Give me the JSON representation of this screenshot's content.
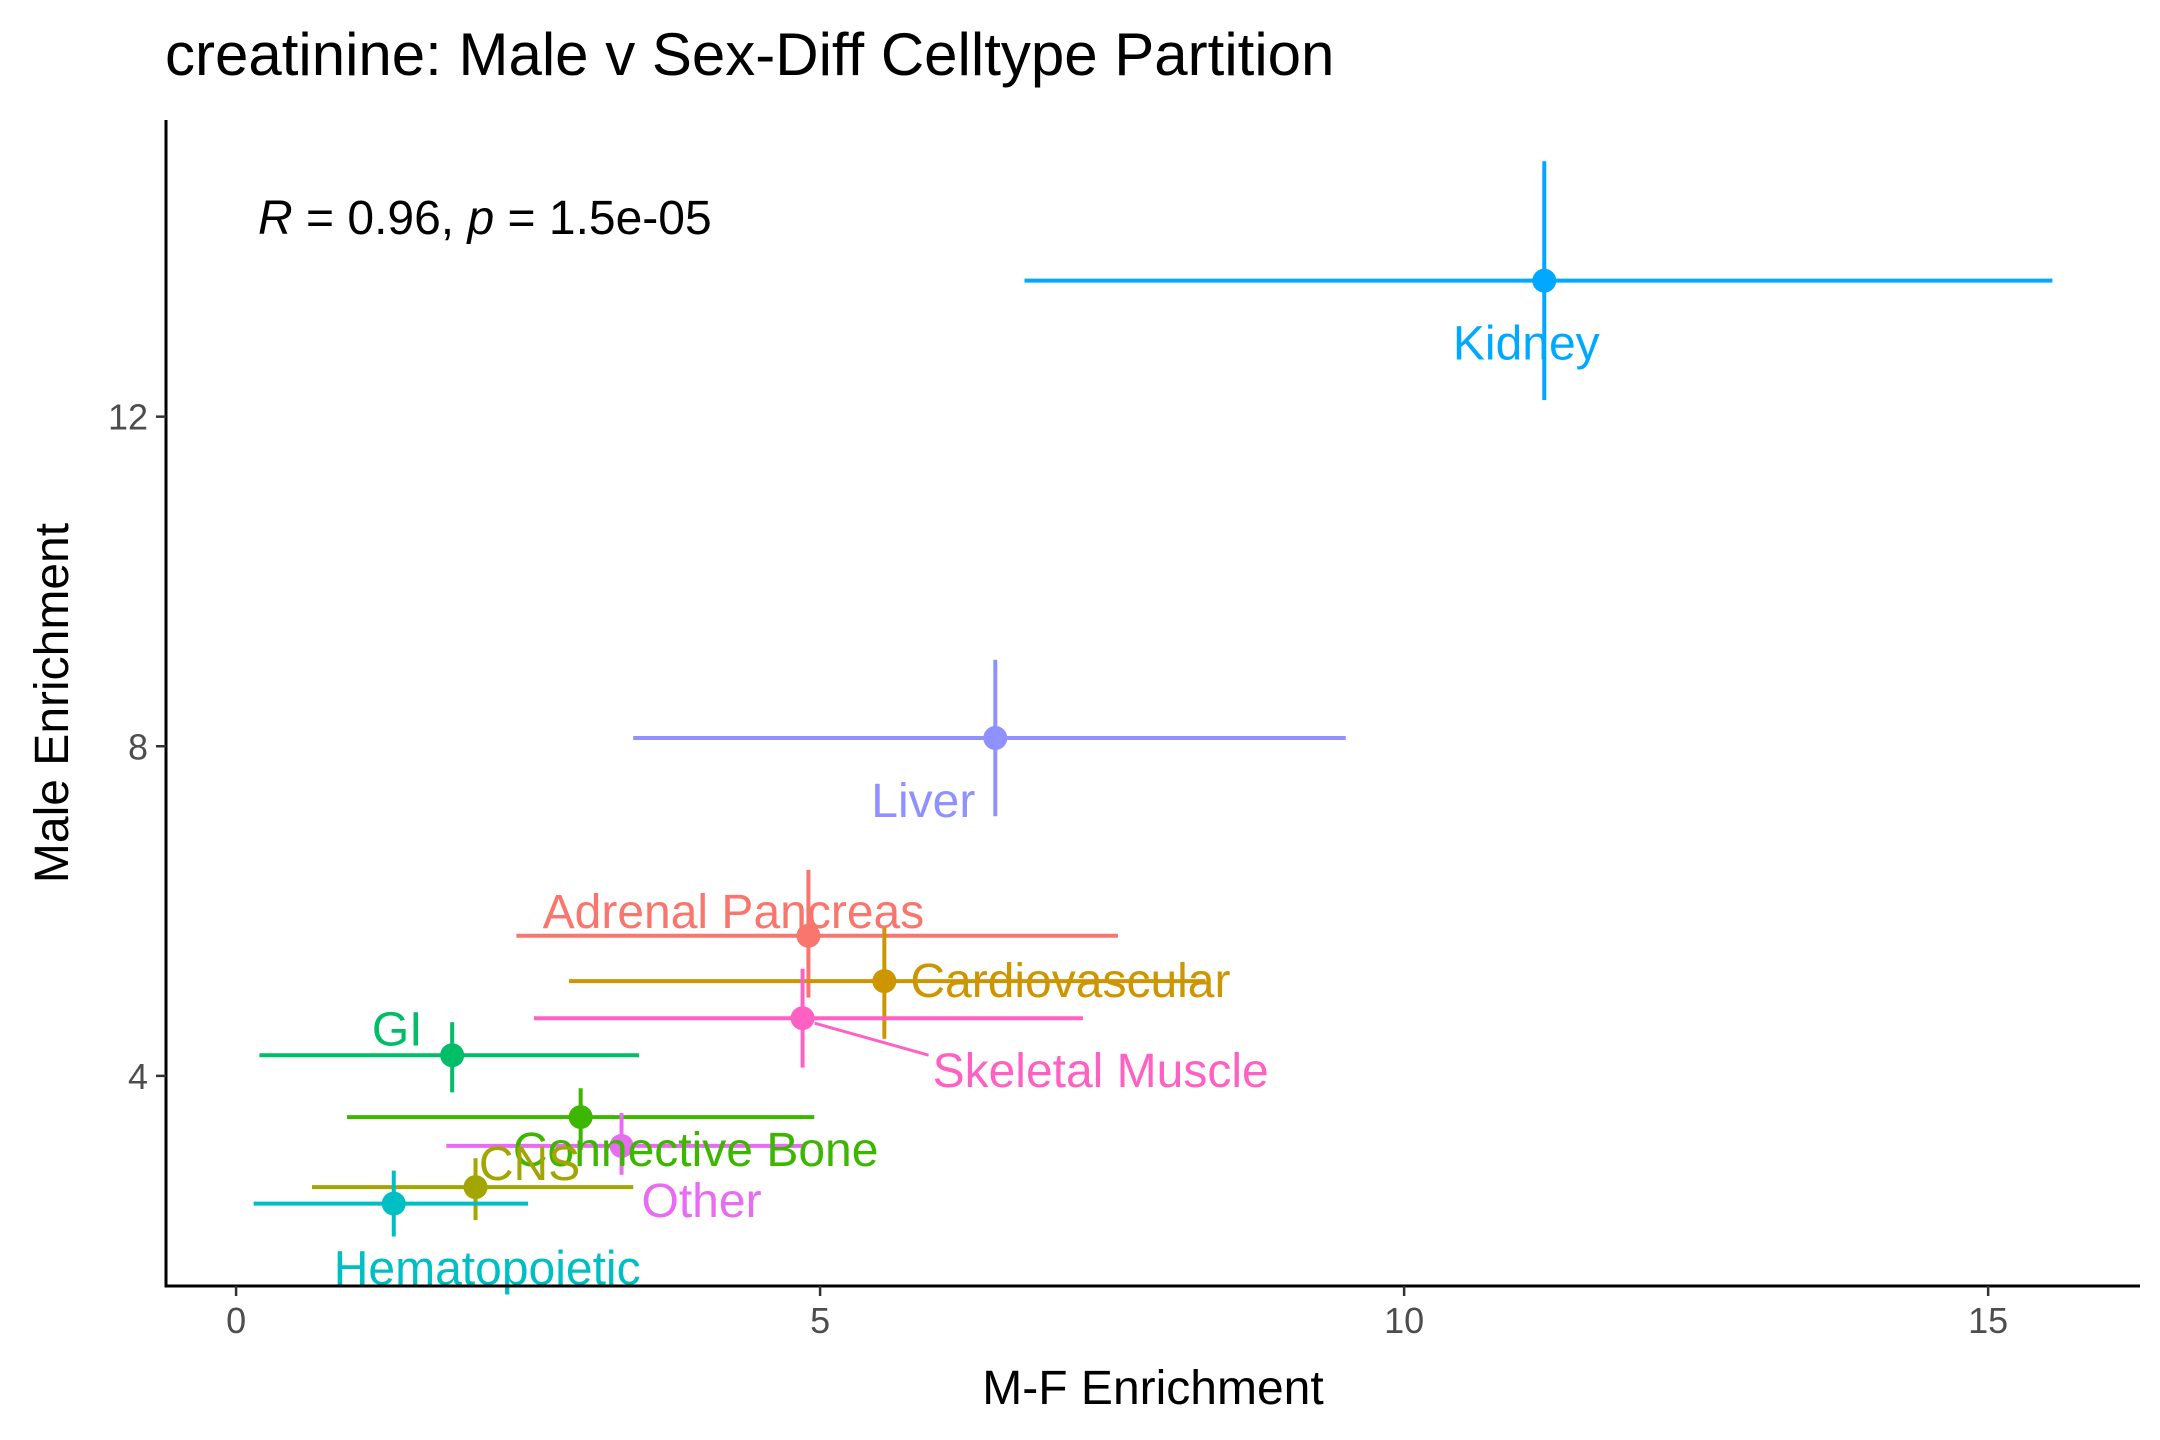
{
  "chart_data": {
    "type": "scatter",
    "title": "creatinine: Male v Sex-Diff Celltype Partition",
    "xlabel": "M-F Enrichment",
    "ylabel": "Male Enrichment",
    "xlim": [
      -0.6,
      16.3
    ],
    "ylim": [
      1.45,
      15.6
    ],
    "x_ticks": [
      0,
      5,
      10,
      15
    ],
    "y_ticks": [
      4,
      8,
      12
    ],
    "grid": false,
    "legend": "none",
    "annotation": {
      "r_symbol": "R",
      "r_text": " = 0.96, ",
      "p_symbol": "p",
      "p_text": " = 1.5e-05"
    },
    "series": [
      {
        "name": "Kidney",
        "color": "#00A9FF",
        "x": 11.2,
        "y": 13.65,
        "xmin": 6.75,
        "xmax": 15.55,
        "ymin": 12.2,
        "ymax": 15.1
      },
      {
        "name": "Liver",
        "color": "#8F91FF",
        "x": 6.5,
        "y": 8.1,
        "xmin": 3.4,
        "xmax": 9.5,
        "ymin": 7.15,
        "ymax": 9.05
      },
      {
        "name": "Adrenal Pancreas",
        "color": "#F8766D",
        "x": 4.9,
        "y": 5.7,
        "xmin": 2.4,
        "xmax": 7.55,
        "ymin": 4.95,
        "ymax": 6.5
      },
      {
        "name": "Cardiovascular",
        "color": "#CD9600",
        "x": 5.55,
        "y": 5.15,
        "xmin": 2.85,
        "xmax": 8.3,
        "ymin": 4.45,
        "ymax": 5.8
      },
      {
        "name": "Skeletal Muscle",
        "color": "#FF61C3",
        "x": 4.85,
        "y": 4.7,
        "xmin": 2.55,
        "xmax": 7.25,
        "ymin": 4.1,
        "ymax": 5.3
      },
      {
        "name": "GI",
        "color": "#00BE67",
        "x": 1.85,
        "y": 4.25,
        "xmin": 0.2,
        "xmax": 3.45,
        "ymin": 3.8,
        "ymax": 4.65
      },
      {
        "name": "Connective Bone",
        "color": "#3DB600",
        "x": 2.95,
        "y": 3.5,
        "xmin": 0.95,
        "xmax": 4.95,
        "ymin": 3.1,
        "ymax": 3.85
      },
      {
        "name": "Other",
        "color": "#E76BF3",
        "x": 3.3,
        "y": 3.15,
        "xmin": 1.8,
        "xmax": 4.85,
        "ymin": 2.8,
        "ymax": 3.55
      },
      {
        "name": "CNS",
        "color": "#A3A500",
        "x": 2.05,
        "y": 2.65,
        "xmin": 0.65,
        "xmax": 3.4,
        "ymin": 2.25,
        "ymax": 3.0
      },
      {
        "name": "Hematopoietic",
        "color": "#00BFC4",
        "x": 1.35,
        "y": 2.45,
        "xmin": 0.15,
        "xmax": 2.5,
        "ymin": 2.05,
        "ymax": 2.85
      }
    ]
  }
}
